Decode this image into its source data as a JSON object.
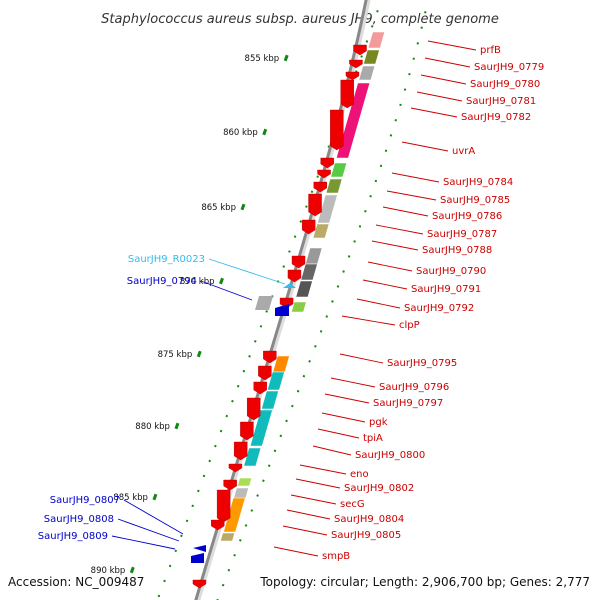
{
  "title": "Staphylococcus aureus subsp. aureus JH9, complete genome",
  "footer": {
    "accession": "Accession: NC_009487",
    "topology": "Topology: circular; Length: 2,906,700 bp; Genes: 2,777"
  },
  "colors": {
    "feature_red": "#ee0000",
    "label_red": "#cc0000",
    "label_blue": "#0000cc",
    "label_cyan": "#33bbee",
    "tick_green": "#118811",
    "backbone": "#888888"
  },
  "kbp_ticks": [
    "855 kbp",
    "860 kbp",
    "865 kbp",
    "870 kbp",
    "875 kbp",
    "880 kbp",
    "885 kbp",
    "890 kbp"
  ],
  "right_labels": [
    "prfB",
    "SaurJH9_0779",
    "SaurJH9_0780",
    "SaurJH9_0781",
    "SaurJH9_0782",
    "uvrA",
    "SaurJH9_0784",
    "SaurJH9_0785",
    "SaurJH9_0786",
    "SaurJH9_0787",
    "SaurJH9_0788",
    "SaurJH9_0790",
    "SaurJH9_0791",
    "SaurJH9_0792",
    "clpP",
    "SaurJH9_0795",
    "SaurJH9_0796",
    "SaurJH9_0797",
    "pgk",
    "tpiA",
    "SaurJH9_0800",
    "eno",
    "SaurJH9_0802",
    "secG",
    "SaurJH9_0804",
    "SaurJH9_0805",
    "smpB"
  ],
  "left_labels": [
    {
      "text": "SaurJH9_R0023",
      "kind": "rna"
    },
    {
      "text": "SaurJH9_0794",
      "kind": "reverse"
    },
    {
      "text": "SaurJH9_0807",
      "kind": "reverse"
    },
    {
      "text": "SaurJH9_0808",
      "kind": "reverse"
    },
    {
      "text": "SaurJH9_0809",
      "kind": "reverse"
    }
  ]
}
